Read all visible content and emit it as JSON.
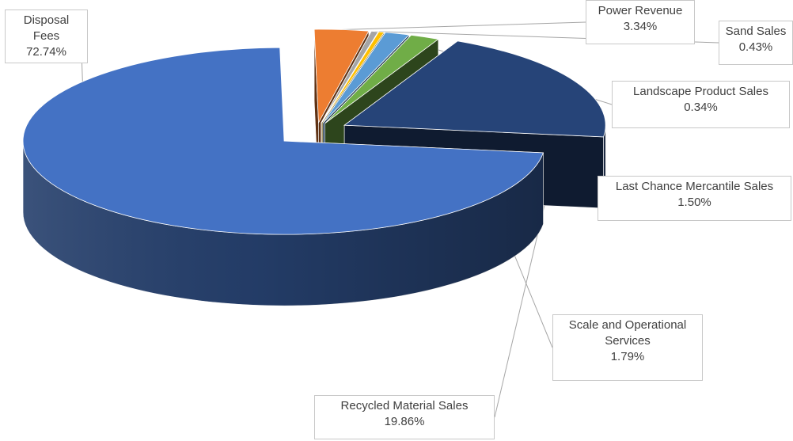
{
  "chart_data": {
    "type": "pie",
    "title": "",
    "style": "3d-exploded",
    "categories": [
      "Disposal Fees",
      "Power Revenue",
      "Sand Sales",
      "Landscape Product Sales",
      "Last Chance Mercantile Sales",
      "Scale and Operational Services",
      "Recycled Material Sales"
    ],
    "values": [
      72.74,
      3.34,
      0.43,
      0.34,
      1.5,
      1.79,
      19.86
    ],
    "value_labels": [
      "72.74%",
      "3.34%",
      "0.43%",
      "0.34%",
      "1.50%",
      "1.79%",
      "19.86%"
    ],
    "colors": [
      "#4472C4",
      "#ED7D31",
      "#A5A5A5",
      "#FFC000",
      "#5B9BD5",
      "#70AD47",
      "#264478"
    ],
    "data_labels": [
      {
        "name_lines": [
          "Disposal Fees"
        ],
        "value": "72.74%"
      },
      {
        "name_lines": [
          "Power Revenue"
        ],
        "value": "3.34%"
      },
      {
        "name_lines": [
          "Sand Sales"
        ],
        "value": "0.43%"
      },
      {
        "name_lines": [
          "Landscape Product Sales"
        ],
        "value": "0.34%"
      },
      {
        "name_lines": [
          "Last Chance Mercantile Sales"
        ],
        "value": "1.50%"
      },
      {
        "name_lines": [
          "Scale and Operational",
          "Services"
        ],
        "value": "1.79%"
      },
      {
        "name_lines": [
          "Recycled Material Sales"
        ],
        "value": "19.86%"
      }
    ]
  }
}
